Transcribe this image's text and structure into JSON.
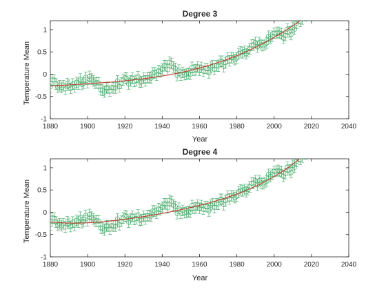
{
  "chart_data": [
    {
      "type": "scatter",
      "title": "Degree 3",
      "xlabel": "Year",
      "ylabel": "Temperature Mean",
      "xlim": [
        1880,
        2040
      ],
      "ylim": [
        -1,
        1.2
      ],
      "xticks": [
        1880,
        1900,
        1920,
        1940,
        1960,
        1980,
        2000,
        2020,
        2040
      ],
      "xtick_labels": [
        "1880",
        "1900",
        "1920",
        "1940",
        "1960",
        "1980",
        "2000",
        "2020",
        "2040"
      ],
      "yticks": [
        -1,
        -0.5,
        0,
        0.5,
        1
      ],
      "ytick_labels": [
        "-1",
        "-0.5",
        "0",
        "0.5",
        "1"
      ],
      "grid": false,
      "marker": "circle",
      "marker_color": "#4daf6f",
      "errorbar_halfwidth": 0.12,
      "fit": {
        "degree": 3,
        "color": "#c0392b",
        "x": [],
        "y": []
      },
      "series": [
        {
          "name": "",
          "x": [],
          "y": []
        }
      ]
    },
    {
      "type": "scatter",
      "title": "Degree 4",
      "xlabel": "Year",
      "ylabel": "Temperature Mean",
      "xlim": [
        1880,
        2040
      ],
      "ylim": [
        -1,
        1.2
      ],
      "xticks": [
        1880,
        1900,
        1920,
        1940,
        1960,
        1980,
        2000,
        2020,
        2040
      ],
      "xtick_labels": [
        "1880",
        "1900",
        "1920",
        "1940",
        "1960",
        "1980",
        "2000",
        "2020",
        "2040"
      ],
      "yticks": [
        -1,
        -0.5,
        0,
        0.5,
        1
      ],
      "ytick_labels": [
        "-1",
        "-0.5",
        "0",
        "0.5",
        "1"
      ],
      "grid": false,
      "marker": "circle",
      "marker_color": "#4daf6f",
      "errorbar_halfwidth": 0.12,
      "fit": {
        "degree": 4,
        "color": "#c0392b",
        "x": [],
        "y": []
      },
      "series": [
        {
          "name": "",
          "x": [],
          "y": []
        }
      ]
    }
  ]
}
